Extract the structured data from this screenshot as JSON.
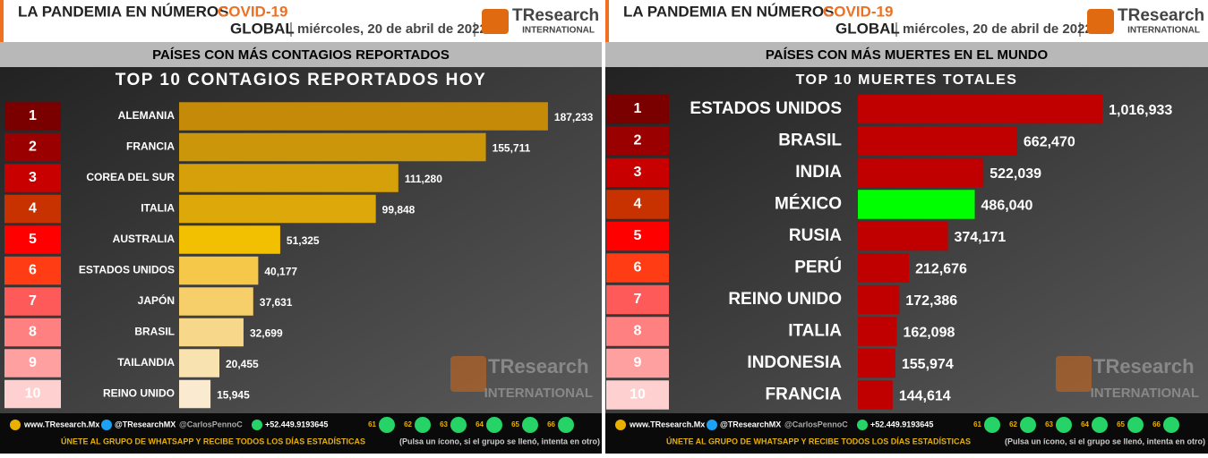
{
  "header": {
    "title": "LA PANDEMIA EN NÚMEROS",
    "highlight": "COVID-19",
    "scope": "GLOBAL",
    "date": "miércoles, 20 de abril de 2022",
    "logo": "TResearch",
    "logo_sub": "INTERNATIONAL"
  },
  "footer": {
    "web": "www.TResearch.Mx",
    "twitter": "@TResearchMX",
    "twitter2": "@CarlosPennoC",
    "phone": "+52.449.9193645",
    "groups": [
      "61",
      "62",
      "63",
      "64",
      "65",
      "66"
    ],
    "call": "ÚNETE AL GRUPO DE WHATSAPP Y RECIBE TODOS LOS DÍAS ESTADÍSTICAS",
    "hint": "(Pulsa un ícono, si el grupo se llenó, intenta en otro)"
  },
  "chart_data": [
    {
      "type": "bar",
      "subtitle": "PAÍSES CON MÁS CONTAGIOS REPORTADOS",
      "title": "TOP 10 CONTAGIOS REPORTADOS HOY",
      "ranks": [
        "1",
        "2",
        "3",
        "4",
        "5",
        "6",
        "7",
        "8",
        "9",
        "10"
      ],
      "rank_colors": [
        "#7a0000",
        "#9a0000",
        "#c80000",
        "#c83200",
        "#ff0000",
        "#ff3c14",
        "#ff5a5a",
        "#ff8080",
        "#ffa0a0",
        "#ffd0d0"
      ],
      "categories": [
        "ALEMANIA",
        "FRANCIA",
        "COREA DEL SUR",
        "ITALIA",
        "AUSTRALIA",
        "ESTADOS UNIDOS",
        "JAPÓN",
        "BRASIL",
        "TAILANDIA",
        "REINO UNIDO"
      ],
      "values": [
        187233,
        155711,
        111280,
        99848,
        51325,
        40177,
        37631,
        32699,
        20455,
        15945
      ],
      "value_labels": [
        "187,233",
        "155,711",
        "111,280",
        "99,848",
        "51,325",
        "40,177",
        "37,631",
        "32,699",
        "20,455",
        "15,945"
      ],
      "colors": [
        "#c48a08",
        "#cc960a",
        "#d6a00a",
        "#dca80a",
        "#f2c000",
        "#f5c84a",
        "#f6cf6a",
        "#f7d88a",
        "#f8e2b0",
        "#f9ead0"
      ],
      "xlim": [
        0,
        200000
      ]
    },
    {
      "type": "bar",
      "subtitle": "PAÍSES CON MÁS MUERTES EN EL MUNDO",
      "title": "TOP 10 MUERTES TOTALES",
      "ranks": [
        "1",
        "2",
        "3",
        "4",
        "5",
        "6",
        "7",
        "8",
        "9",
        "10"
      ],
      "rank_colors": [
        "#7a0000",
        "#9a0000",
        "#c80000",
        "#c83200",
        "#ff0000",
        "#ff3c14",
        "#ff5a5a",
        "#ff8080",
        "#ffa0a0",
        "#ffd0d0"
      ],
      "categories": [
        "ESTADOS UNIDOS",
        "BRASIL",
        "INDIA",
        "MÉXICO",
        "RUSIA",
        "PERÚ",
        "REINO UNIDO",
        "ITALIA",
        "INDONESIA",
        "FRANCIA"
      ],
      "values": [
        1016933,
        662470,
        522039,
        486040,
        374171,
        212676,
        172386,
        162098,
        155974,
        144614
      ],
      "value_labels": [
        "1,016,933",
        "662,470",
        "522,039",
        "486,040",
        "374,171",
        "212,676",
        "172,386",
        "162,098",
        "155,974",
        "144,614"
      ],
      "colors": [
        "#c00000",
        "#c00000",
        "#c00000",
        "#00ff00",
        "#c00000",
        "#c00000",
        "#c00000",
        "#c00000",
        "#c00000",
        "#c00000"
      ],
      "xlim": [
        0,
        1400000
      ]
    }
  ]
}
